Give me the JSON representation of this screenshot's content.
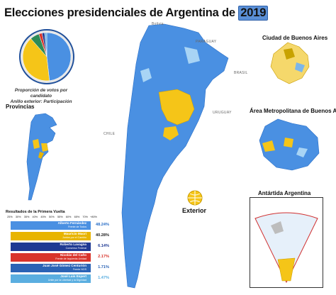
{
  "title": "Elecciones presidenciales de Argentina de",
  "year": "2019",
  "pie_caption": "Proporción de votos por candidato\nAnillo exterior: Participación",
  "pie_slices": [
    {
      "candidate": "Alberto Fernández",
      "share": 48.24,
      "color": "#4a90e2"
    },
    {
      "candidate": "Mauricio Macri",
      "share": 40.28,
      "color": "#f5c518"
    },
    {
      "candidate": "Roberto Lavagna",
      "share": 6.14,
      "color": "#2e8b57"
    },
    {
      "candidate": "Nicolás del Caño",
      "share": 2.17,
      "color": "#d9342b"
    },
    {
      "candidate": "Juan José Gómez Centurión",
      "share": 1.71,
      "color": "#1f3a93"
    },
    {
      "candidate": "José Luis Espert",
      "share": 1.47,
      "color": "#6fb3e0"
    }
  ],
  "labels": {
    "provincias": "Provincias",
    "caba": "Ciudad de Buenos Aires",
    "amba": "Área Metropolitana de Buenos Aires",
    "antartida": "Antártida Argentina",
    "exterior": "Exterior"
  },
  "countries": {
    "bolivia": "Bolivia",
    "paraguay": "PARAGUAY",
    "brasil": "BRASIL",
    "uruguay": "URUGUAY",
    "chile": "CHILE"
  },
  "results": {
    "title": "Resultados de la Primera Vuelta",
    "scale": [
      "25%",
      "30%",
      "35%",
      "40%",
      "45%",
      "50%",
      "55%",
      "60%",
      "65%",
      "70%",
      "+80%"
    ],
    "rows": [
      {
        "candidate": "Alberto Fernández",
        "party": "Frente de Todos",
        "pct": "48.24%",
        "color": "#4a90e2",
        "pct_color": "#2a6fc7"
      },
      {
        "candidate": "Mauricio Macri",
        "party": "Juntos por el Cambio",
        "pct": "40.28%",
        "color": "#e8b400",
        "pct_color": "#222222"
      },
      {
        "candidate": "Roberto Lavagna",
        "party": "Consenso Federal",
        "pct": "6.14%",
        "color": "#1f3a93",
        "pct_color": "#1f3a93"
      },
      {
        "candidate": "Nicolás del Caño",
        "party": "Frente de Izquierda-Unidad",
        "pct": "2.17%",
        "color": "#d9342b",
        "pct_color": "#d9342b"
      },
      {
        "candidate": "Juan José Gómez Centurión",
        "party": "Frente NOS",
        "pct": "1.71%",
        "color": "#2b63b5",
        "pct_color": "#2b63b5"
      },
      {
        "candidate": "José Luis Espert",
        "party": "Unite por la Libertad y la Dignidad",
        "pct": "1.47%",
        "color": "#5aaee0",
        "pct_color": "#5aaee0"
      }
    ]
  }
}
